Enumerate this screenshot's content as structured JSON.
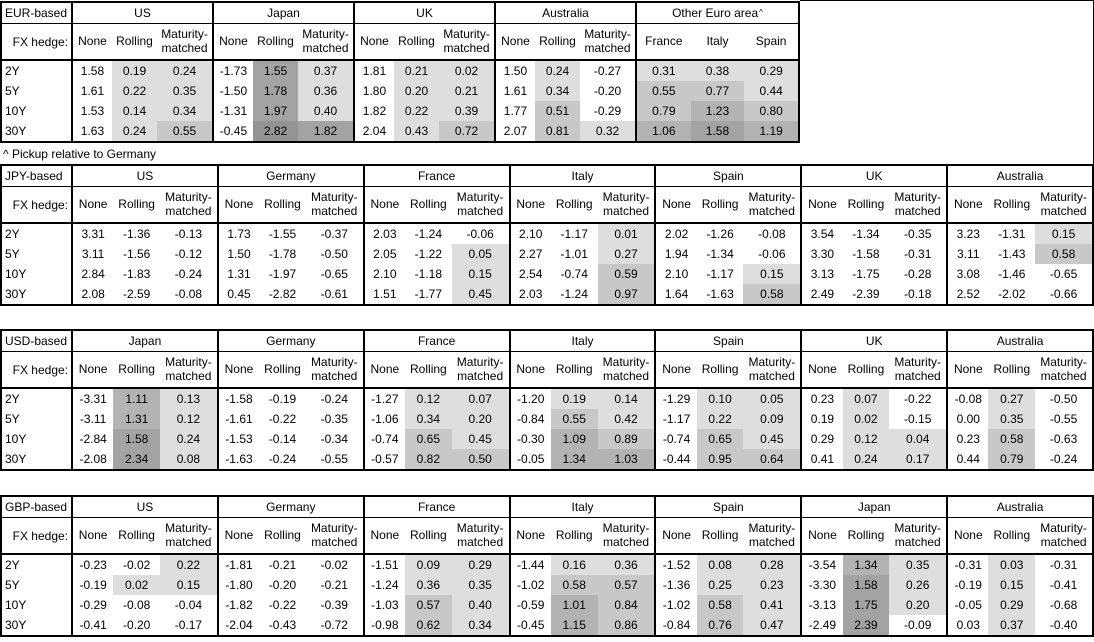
{
  "footnote": "^ Pickup relative to Germany",
  "heat": {
    "thresholds": [
      0.5,
      1.0,
      1.5,
      2.5
    ],
    "colors": [
      "#dedede",
      "#c8c8c8",
      "#b3b3b3",
      "#a3a3a3",
      "#949494"
    ],
    "unshaded": "#ffffff"
  },
  "tables": [
    {
      "id": "eur",
      "base_label": "EUR-based",
      "fx_hedge_label": "FX hedge:",
      "col_headers": [
        "None",
        "Rolling",
        "Maturity-matched"
      ],
      "row_labels": [
        "2Y",
        "5Y",
        "10Y",
        "30Y"
      ],
      "groups": [
        {
          "name": "US",
          "rows": [
            [
              "1.58",
              "0.19",
              "0.24"
            ],
            [
              "1.61",
              "0.22",
              "0.35"
            ],
            [
              "1.53",
              "0.14",
              "0.34"
            ],
            [
              "1.63",
              "0.24",
              "0.55"
            ]
          ]
        },
        {
          "name": "Japan",
          "rows": [
            [
              "-1.73",
              "1.55",
              "0.37"
            ],
            [
              "-1.50",
              "1.78",
              "0.36"
            ],
            [
              "-1.31",
              "1.97",
              "0.40"
            ],
            [
              "-0.45",
              "2.82",
              "1.82"
            ]
          ]
        },
        {
          "name": "UK",
          "rows": [
            [
              "1.81",
              "0.21",
              "0.02"
            ],
            [
              "1.80",
              "0.20",
              "0.21"
            ],
            [
              "1.82",
              "0.22",
              "0.39"
            ],
            [
              "2.04",
              "0.43",
              "0.72"
            ]
          ]
        },
        {
          "name": "Australia",
          "rows": [
            [
              "1.50",
              "0.24",
              "-0.27"
            ],
            [
              "1.61",
              "0.34",
              "-0.20"
            ],
            [
              "1.77",
              "0.51",
              "-0.29"
            ],
            [
              "2.07",
              "0.81",
              "0.32"
            ]
          ]
        },
        {
          "name": "Other Euro area",
          "superscript": "^",
          "sub_headers": [
            "France",
            "Italy",
            "Spain"
          ],
          "rows": [
            [
              "0.31",
              "0.38",
              "0.29"
            ],
            [
              "0.55",
              "0.77",
              "0.44"
            ],
            [
              "0.79",
              "1.23",
              "0.80"
            ],
            [
              "1.06",
              "1.58",
              "1.19"
            ]
          ]
        }
      ]
    },
    {
      "id": "jpy",
      "base_label": "JPY-based",
      "fx_hedge_label": "FX hedge:",
      "col_headers": [
        "None",
        "Rolling",
        "Maturity-matched"
      ],
      "row_labels": [
        "2Y",
        "5Y",
        "10Y",
        "30Y"
      ],
      "groups": [
        {
          "name": "US",
          "rows": [
            [
              "3.31",
              "-1.36",
              "-0.13"
            ],
            [
              "3.11",
              "-1.56",
              "-0.12"
            ],
            [
              "2.84",
              "-1.83",
              "-0.24"
            ],
            [
              "2.08",
              "-2.59",
              "-0.08"
            ]
          ]
        },
        {
          "name": "Germany",
          "rows": [
            [
              "1.73",
              "-1.55",
              "-0.37"
            ],
            [
              "1.50",
              "-1.78",
              "-0.50"
            ],
            [
              "1.31",
              "-1.97",
              "-0.65"
            ],
            [
              "0.45",
              "-2.82",
              "-0.61"
            ]
          ]
        },
        {
          "name": "France",
          "rows": [
            [
              "2.03",
              "-1.24",
              "-0.06"
            ],
            [
              "2.05",
              "-1.22",
              "0.05"
            ],
            [
              "2.10",
              "-1.18",
              "0.15"
            ],
            [
              "1.51",
              "-1.77",
              "0.45"
            ]
          ]
        },
        {
          "name": "Italy",
          "rows": [
            [
              "2.10",
              "-1.17",
              "0.01"
            ],
            [
              "2.27",
              "-1.01",
              "0.27"
            ],
            [
              "2.54",
              "-0.74",
              "0.59"
            ],
            [
              "2.03",
              "-1.24",
              "0.97"
            ]
          ]
        },
        {
          "name": "Spain",
          "rows": [
            [
              "2.02",
              "-1.26",
              "-0.08"
            ],
            [
              "1.94",
              "-1.34",
              "-0.06"
            ],
            [
              "2.10",
              "-1.17",
              "0.15"
            ],
            [
              "1.64",
              "-1.63",
              "0.58"
            ]
          ]
        },
        {
          "name": "UK",
          "rows": [
            [
              "3.54",
              "-1.34",
              "-0.35"
            ],
            [
              "3.30",
              "-1.58",
              "-0.31"
            ],
            [
              "3.13",
              "-1.75",
              "-0.28"
            ],
            [
              "2.49",
              "-2.39",
              "-0.18"
            ]
          ]
        },
        {
          "name": "Australia",
          "rows": [
            [
              "3.23",
              "-1.31",
              "0.15"
            ],
            [
              "3.11",
              "-1.43",
              "0.58"
            ],
            [
              "3.08",
              "-1.46",
              "-0.65"
            ],
            [
              "2.52",
              "-2.02",
              "-0.66"
            ]
          ]
        }
      ]
    },
    {
      "id": "usd",
      "base_label": "USD-based",
      "fx_hedge_label": "FX hedge:",
      "col_headers": [
        "None",
        "Rolling",
        "Maturity-matched"
      ],
      "row_labels": [
        "2Y",
        "5Y",
        "10Y",
        "30Y"
      ],
      "groups": [
        {
          "name": "Japan",
          "rows": [
            [
              "-3.31",
              "1.11",
              "0.13"
            ],
            [
              "-3.11",
              "1.31",
              "0.12"
            ],
            [
              "-2.84",
              "1.58",
              "0.24"
            ],
            [
              "-2.08",
              "2.34",
              "0.08"
            ]
          ]
        },
        {
          "name": "Germany",
          "rows": [
            [
              "-1.58",
              "-0.19",
              "-0.24"
            ],
            [
              "-1.61",
              "-0.22",
              "-0.35"
            ],
            [
              "-1.53",
              "-0.14",
              "-0.34"
            ],
            [
              "-1.63",
              "-0.24",
              "-0.55"
            ]
          ]
        },
        {
          "name": "France",
          "rows": [
            [
              "-1.27",
              "0.12",
              "0.07"
            ],
            [
              "-1.06",
              "0.34",
              "0.20"
            ],
            [
              "-0.74",
              "0.65",
              "0.45"
            ],
            [
              "-0.57",
              "0.82",
              "0.50"
            ]
          ]
        },
        {
          "name": "Italy",
          "rows": [
            [
              "-1.20",
              "0.19",
              "0.14"
            ],
            [
              "-0.84",
              "0.55",
              "0.42"
            ],
            [
              "-0.30",
              "1.09",
              "0.89"
            ],
            [
              "-0.05",
              "1.34",
              "1.03"
            ]
          ]
        },
        {
          "name": "Spain",
          "rows": [
            [
              "-1.29",
              "0.10",
              "0.05"
            ],
            [
              "-1.17",
              "0.22",
              "0.09"
            ],
            [
              "-0.74",
              "0.65",
              "0.45"
            ],
            [
              "-0.44",
              "0.95",
              "0.64"
            ]
          ]
        },
        {
          "name": "UK",
          "rows": [
            [
              "0.23",
              "0.07",
              "-0.22"
            ],
            [
              "0.19",
              "0.02",
              "-0.15"
            ],
            [
              "0.29",
              "0.12",
              "0.04"
            ],
            [
              "0.41",
              "0.24",
              "0.17"
            ]
          ]
        },
        {
          "name": "Australia",
          "rows": [
            [
              "-0.08",
              "0.27",
              "-0.50"
            ],
            [
              "0.00",
              "0.35",
              "-0.55"
            ],
            [
              "0.23",
              "0.58",
              "-0.63"
            ],
            [
              "0.44",
              "0.79",
              "-0.24"
            ]
          ]
        }
      ]
    },
    {
      "id": "gbp",
      "base_label": "GBP-based",
      "fx_hedge_label": "FX hedge:",
      "col_headers": [
        "None",
        "Rolling",
        "Maturity-matched"
      ],
      "row_labels": [
        "2Y",
        "5Y",
        "10Y",
        "30Y"
      ],
      "groups": [
        {
          "name": "US",
          "rows": [
            [
              "-0.23",
              "-0.02",
              "0.22"
            ],
            [
              "-0.19",
              "0.02",
              "0.15"
            ],
            [
              "-0.29",
              "-0.08",
              "-0.04"
            ],
            [
              "-0.41",
              "-0.20",
              "-0.17"
            ]
          ]
        },
        {
          "name": "Germany",
          "rows": [
            [
              "-1.81",
              "-0.21",
              "-0.02"
            ],
            [
              "-1.80",
              "-0.20",
              "-0.21"
            ],
            [
              "-1.82",
              "-0.22",
              "-0.39"
            ],
            [
              "-2.04",
              "-0.43",
              "-0.72"
            ]
          ]
        },
        {
          "name": "France",
          "rows": [
            [
              "-1.51",
              "0.09",
              "0.29"
            ],
            [
              "-1.24",
              "0.36",
              "0.35"
            ],
            [
              "-1.03",
              "0.57",
              "0.40"
            ],
            [
              "-0.98",
              "0.62",
              "0.34"
            ]
          ]
        },
        {
          "name": "Italy",
          "rows": [
            [
              "-1.44",
              "0.16",
              "0.36"
            ],
            [
              "-1.02",
              "0.58",
              "0.57"
            ],
            [
              "-0.59",
              "1.01",
              "0.84"
            ],
            [
              "-0.45",
              "1.15",
              "0.86"
            ]
          ]
        },
        {
          "name": "Spain",
          "rows": [
            [
              "-1.52",
              "0.08",
              "0.28"
            ],
            [
              "-1.36",
              "0.25",
              "0.23"
            ],
            [
              "-1.02",
              "0.58",
              "0.41"
            ],
            [
              "-0.84",
              "0.76",
              "0.47"
            ]
          ]
        },
        {
          "name": "Japan",
          "rows": [
            [
              "-3.54",
              "1.34",
              "0.35"
            ],
            [
              "-3.30",
              "1.58",
              "0.26"
            ],
            [
              "-3.13",
              "1.75",
              "0.20"
            ],
            [
              "-2.49",
              "2.39",
              "-0.09"
            ]
          ]
        },
        {
          "name": "Australia",
          "rows": [
            [
              "-0.31",
              "0.03",
              "-0.31"
            ],
            [
              "-0.19",
              "0.15",
              "-0.41"
            ],
            [
              "-0.05",
              "0.29",
              "-0.68"
            ],
            [
              "0.03",
              "0.37",
              "-0.40"
            ]
          ]
        }
      ]
    }
  ]
}
